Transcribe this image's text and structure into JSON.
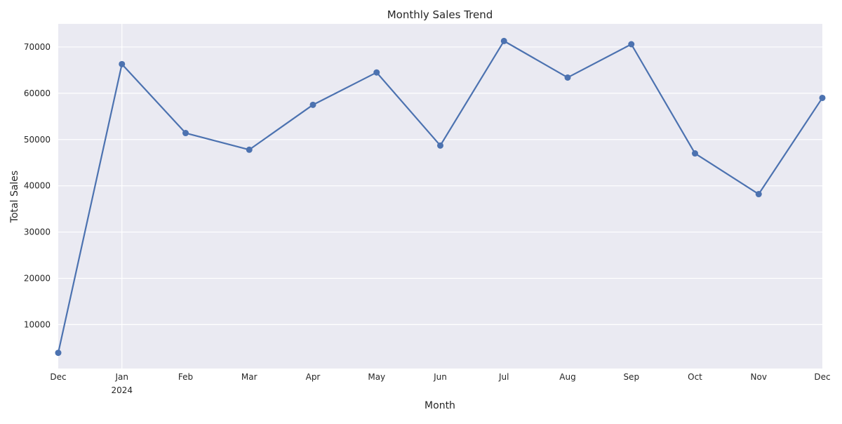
{
  "chart_data": {
    "type": "line",
    "title": "Monthly Sales Trend",
    "xlabel": "Month",
    "ylabel": "Total Sales",
    "x": [
      "2023-12",
      "2024-01",
      "2024-02",
      "2024-03",
      "2024-04",
      "2024-05",
      "2024-06",
      "2024-07",
      "2024-08",
      "2024-09",
      "2024-10",
      "2024-11",
      "2024-12"
    ],
    "x_tick_labels": [
      "Dec",
      "Jan",
      "Feb",
      "Mar",
      "Apr",
      "May",
      "Jun",
      "Jul",
      "Aug",
      "Sep",
      "Oct",
      "Nov",
      "Dec"
    ],
    "x_tick_sublabels": [
      "",
      "2024",
      "",
      "",
      "",
      "",
      "",
      "",
      "",
      "",
      "",
      "",
      ""
    ],
    "series": [
      {
        "values": [
          3900,
          66300,
          51400,
          47800,
          57500,
          64500,
          48700,
          71300,
          63400,
          70600,
          47000,
          38200,
          59000
        ]
      }
    ],
    "y_ticks": [
      10000,
      20000,
      30000,
      40000,
      50000,
      60000,
      70000
    ],
    "ylim": [
      500,
      75000
    ],
    "grid": true,
    "marker": "circle",
    "colors": {
      "line": "#4c72b0",
      "plot_background": "#eaeaf2",
      "grid": "#ffffff",
      "text": "#262626"
    }
  }
}
